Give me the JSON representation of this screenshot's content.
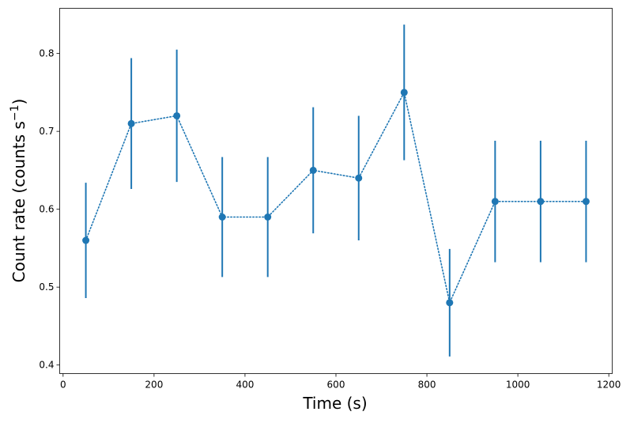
{
  "chart_data": {
    "type": "scatter",
    "title": "",
    "xlabel": "Time (s)",
    "ylabel_main": "Count rate (counts s",
    "ylabel_sup": "−1",
    "ylabel_close": ")",
    "xlim": [
      -7.5,
      1207.5
    ],
    "ylim": [
      0.389,
      0.858
    ],
    "xticks": [
      0,
      200,
      400,
      600,
      800,
      1000,
      1200
    ],
    "xtick_labels": [
      "0",
      "200",
      "400",
      "600",
      "800",
      "1000",
      "1200"
    ],
    "yticks": [
      0.4,
      0.5,
      0.6,
      0.7,
      0.8
    ],
    "ytick_labels": [
      "0.4",
      "0.5",
      "0.6",
      "0.7",
      "0.8"
    ],
    "grid": false,
    "series": [
      {
        "name": "count rate",
        "color": "#1f77b4",
        "line_style": "dotted",
        "x": [
          50,
          150,
          250,
          350,
          450,
          550,
          650,
          750,
          850,
          950,
          1050,
          1150
        ],
        "y": [
          0.56,
          0.71,
          0.72,
          0.59,
          0.59,
          0.65,
          0.64,
          0.75,
          0.48,
          0.61,
          0.61,
          0.61
        ],
        "yerr": [
          0.074,
          0.084,
          0.085,
          0.077,
          0.077,
          0.081,
          0.08,
          0.087,
          0.069,
          0.078,
          0.078,
          0.078
        ]
      }
    ]
  }
}
